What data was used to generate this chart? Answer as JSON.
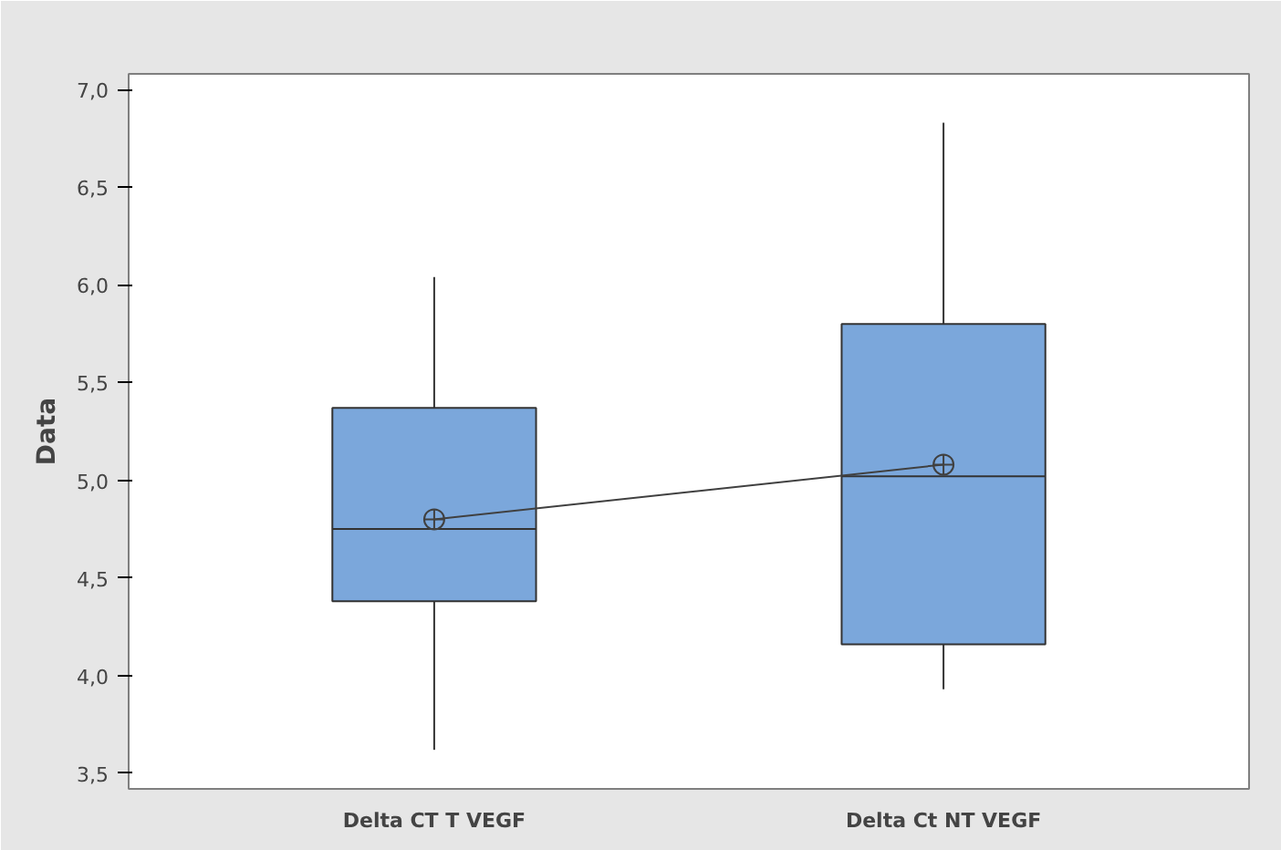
{
  "chart_data": {
    "type": "box",
    "ylabel": "Data",
    "categories": [
      "Delta CT T VEGF",
      "Delta Ct NT VEGF"
    ],
    "color": "#7ba7db",
    "boxes": [
      {
        "low": 3.62,
        "q1": 4.38,
        "median": 4.75,
        "q3": 5.37,
        "high": 6.04
      },
      {
        "low": 3.93,
        "q1": 4.16,
        "median": 5.02,
        "q3": 5.8,
        "high": 6.83
      }
    ],
    "series": [
      {
        "type": "line",
        "x": [
          "Delta CT T VEGF",
          "Delta Ct NT VEGF"
        ],
        "values": [
          4.8,
          5.08
        ],
        "color": "#404040",
        "marker": "circle"
      }
    ],
    "ylim": [
      3.42,
      7.08
    ],
    "yticks": [
      {
        "value": 3.5,
        "label": "3,5"
      },
      {
        "value": 4.0,
        "label": "4,0"
      },
      {
        "value": 4.5,
        "label": "4,5"
      },
      {
        "value": 5.0,
        "label": "5,0"
      },
      {
        "value": 5.5,
        "label": "5,5"
      },
      {
        "value": 6.0,
        "label": "6,0"
      },
      {
        "value": 6.5,
        "label": "6,5"
      },
      {
        "value": 7.0,
        "label": "7,0"
      }
    ],
    "grid": false
  }
}
